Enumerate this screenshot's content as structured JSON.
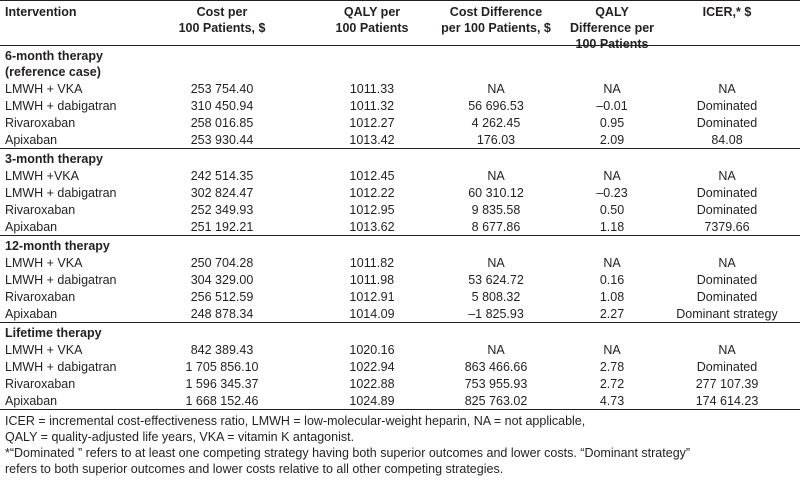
{
  "header": {
    "columns": [
      [
        "Intervention"
      ],
      [
        "Cost per",
        "100 Patients, $"
      ],
      [
        "QALY per",
        "100 Patients"
      ],
      [
        "Cost Difference",
        "per 100 Patients, $"
      ],
      [
        "QALY",
        "Difference per",
        "100 Patients"
      ],
      [
        "ICER,* $"
      ]
    ]
  },
  "sections": [
    {
      "title": [
        "6-month therapy",
        "(reference case)"
      ],
      "rows": [
        [
          "LMWH + VKA",
          "253 754.40",
          "1011.33",
          "NA",
          "NA",
          "NA"
        ],
        [
          "LMWH + dabigatran",
          "310 450.94",
          "1011.32",
          "56 696.53",
          "–0.01",
          "Dominated"
        ],
        [
          "Rivaroxaban",
          "258 016.85",
          "1012.27",
          "4 262.45",
          "0.95",
          "Dominated"
        ],
        [
          "Apixaban",
          "253 930.44",
          "1013.42",
          "176.03",
          "2.09",
          "84.08"
        ]
      ]
    },
    {
      "title": [
        "3-month therapy"
      ],
      "rows": [
        [
          "LMWH +VKA",
          "242 514.35",
          "1012.45",
          "NA",
          "NA",
          "NA"
        ],
        [
          "LMWH + dabigatran",
          "302 824.47",
          "1012.22",
          "60 310.12",
          "–0.23",
          "Dominated"
        ],
        [
          "Rivaroxaban",
          "252 349.93",
          "1012.95",
          "9 835.58",
          "0.50",
          "Dominated"
        ],
        [
          "Apixaban",
          "251 192.21",
          "1013.62",
          "8 677.86",
          "1.18",
          "7379.66"
        ]
      ]
    },
    {
      "title": [
        "12-month therapy"
      ],
      "rows": [
        [
          "LMWH + VKA",
          "250 704.28",
          "1011.82",
          "NA",
          "NA",
          "NA"
        ],
        [
          "LMWH + dabigatran",
          "304 329.00",
          "1011.98",
          "53 624.72",
          "0.16",
          "Dominated"
        ],
        [
          "Rivaroxaban",
          "256 512.59",
          "1012.91",
          "5 808.32",
          "1.08",
          "Dominated"
        ],
        [
          "Apixaban",
          "248 878.34",
          "1014.09",
          "–1 825.93",
          "2.27",
          "Dominant strategy"
        ]
      ]
    },
    {
      "title": [
        "Lifetime therapy"
      ],
      "rows": [
        [
          "LMWH + VKA",
          "842 389.43",
          "1020.16",
          "NA",
          "NA",
          "NA"
        ],
        [
          "LMWH + dabigatran",
          "1 705 856.10",
          "1022.94",
          "863 466.66",
          "2.78",
          "Dominated"
        ],
        [
          "Rivaroxaban",
          "1 596 345.37",
          "1022.88",
          "753 955.93",
          "2.72",
          "277 107.39"
        ],
        [
          "Apixaban",
          "1 668 152.46",
          "1024.89",
          "825 763.02",
          "4.73",
          "174 614.23"
        ]
      ]
    }
  ],
  "footnotes": [
    [
      "ICER = incremental cost-effectiveness ratio, LMWH = low-molecular-weight heparin, NA = not applicable,",
      "QALY = quality-adjusted life years, VKA = vitamin K antagonist."
    ],
    [
      "*“Dominated ” refers to at least one competing strategy having both superior outcomes and lower costs. “Dominant strategy”",
      "refers to both superior outcomes and lower costs relative to all other competing strategies."
    ]
  ]
}
